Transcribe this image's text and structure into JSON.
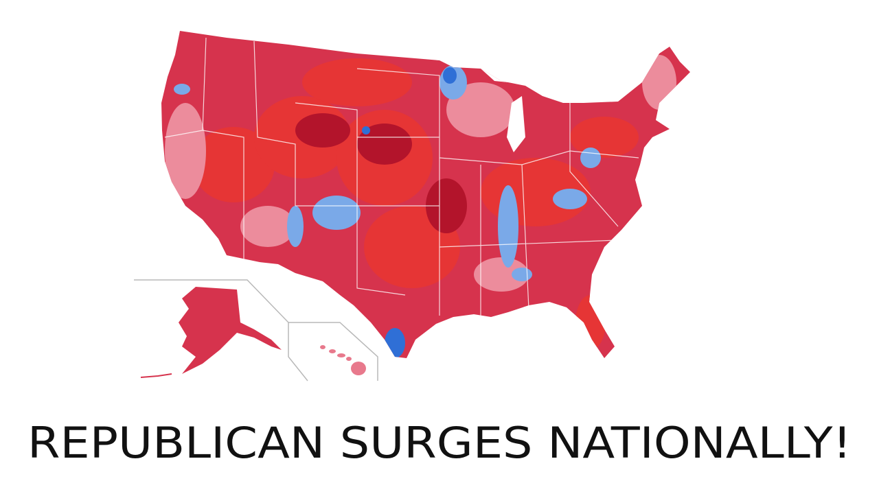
{
  "caption": "REPUBLICAN SURGES NATIONALLY!"
}
